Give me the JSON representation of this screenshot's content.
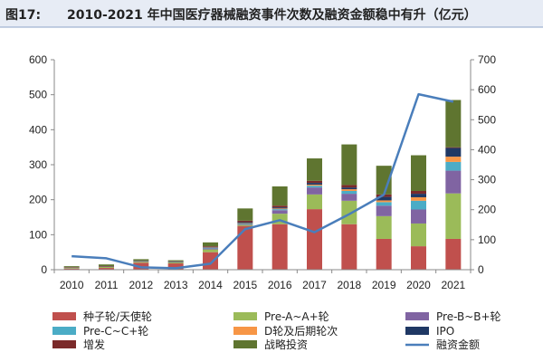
{
  "chart_data": {
    "type": "bar",
    "title_prefix": "图17:",
    "title": "2010-2021 年中国医疗器械融资事件次数及融资金额稳中有升（亿元）",
    "categories": [
      "2010",
      "2011",
      "2012",
      "2013",
      "2014",
      "2015",
      "2016",
      "2017",
      "2018",
      "2019",
      "2020",
      "2021"
    ],
    "ylim_left": [
      0,
      600
    ],
    "yticks_left": [
      "0",
      "100",
      "200",
      "300",
      "400",
      "500",
      "600"
    ],
    "ylim_right": [
      0,
      700
    ],
    "yticks_right": [
      "0",
      "100",
      "200",
      "300",
      "400",
      "500",
      "600",
      "700"
    ],
    "stacked": true,
    "series": [
      {
        "name": "种子轮/天使轮",
        "color": "#c0504d",
        "axis": "left",
        "values": [
          3,
          5,
          20,
          18,
          50,
          125,
          130,
          173,
          130,
          88,
          67,
          88
        ]
      },
      {
        "name": "Pre-A~A+轮",
        "color": "#9bbb59",
        "axis": "left",
        "values": [
          2,
          3,
          3,
          3,
          8,
          3,
          30,
          42,
          67,
          65,
          65,
          130
        ]
      },
      {
        "name": "Pre-B~B+轮",
        "color": "#8064a2",
        "axis": "left",
        "values": [
          1,
          1,
          1,
          1,
          3,
          2,
          10,
          20,
          20,
          30,
          40,
          65
        ]
      },
      {
        "name": "Pre-C~C+轮",
        "color": "#4bacc6",
        "axis": "left",
        "values": [
          0,
          0,
          1,
          1,
          2,
          2,
          3,
          5,
          8,
          10,
          25,
          25
        ]
      },
      {
        "name": "D轮及后期轮次",
        "color": "#f79646",
        "axis": "left",
        "values": [
          0,
          0,
          0,
          0,
          1,
          1,
          2,
          3,
          5,
          5,
          10,
          15
        ]
      },
      {
        "name": "IPO",
        "color": "#1f3864",
        "axis": "left",
        "values": [
          0,
          0,
          0,
          0,
          1,
          3,
          3,
          5,
          5,
          10,
          10,
          25
        ]
      },
      {
        "name": "增发",
        "color": "#7b2a2a",
        "axis": "left",
        "values": [
          1,
          1,
          1,
          1,
          2,
          4,
          5,
          6,
          7,
          7,
          8,
          2
        ]
      },
      {
        "name": "战略投资",
        "color": "#5f7530",
        "axis": "left",
        "values": [
          3,
          5,
          4,
          3,
          11,
          35,
          55,
          64,
          116,
          82,
          102,
          135
        ]
      },
      {
        "name": "融资金额",
        "type": "line",
        "color": "#4a7ebb",
        "axis": "right",
        "values": [
          45,
          38,
          8,
          5,
          20,
          135,
          165,
          125,
          185,
          250,
          585,
          560
        ]
      }
    ],
    "legend": {
      "position": "bottom",
      "columns": 3
    }
  }
}
